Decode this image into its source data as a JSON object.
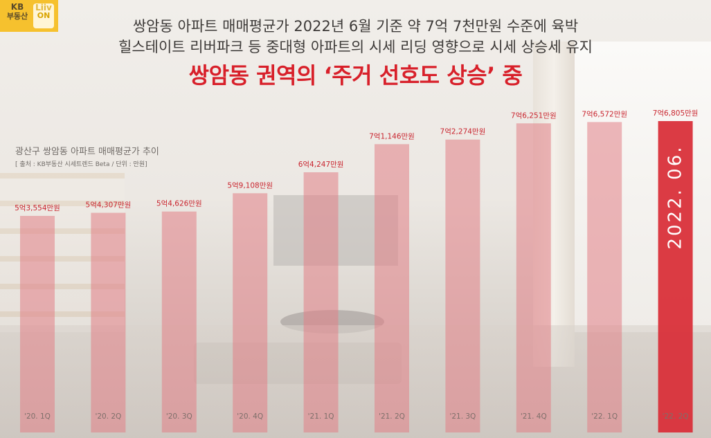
{
  "logo": {
    "line1": "KB",
    "line2": "부동산",
    "badge_icon": "Liiv",
    "badge_text": "ON"
  },
  "headline": {
    "line1": "쌍암동 아파트 매매평균가 2022년 6월 기준 약 7억 7천만원 수준에 육박",
    "line2": "힐스테이트 리버파크 등 중대형 아파트의 시세 리딩 영향으로 시세 상승세 유지",
    "emphasis": "쌍암동 권역의 ‘주거 선호도 상승’ 중"
  },
  "caption": {
    "title": "광산구 쌍암동 아파트 매매평균가 추이",
    "source": "[ 출처 : KB부동산 시세트렌드 Beta / 단위 : 만원]"
  },
  "chart_data": {
    "type": "bar",
    "categories": [
      "'20. 1Q",
      "'20. 2Q",
      "'20. 3Q",
      "'20. 4Q",
      "'21. 1Q",
      "'21. 2Q",
      "'21. 3Q",
      "'21. 4Q",
      "'22. 1Q",
      "'22. 2Q"
    ],
    "values": [
      53554,
      54307,
      54626,
      59108,
      64247,
      71146,
      72274,
      76251,
      76572,
      76805
    ],
    "value_labels": [
      "5억3,554만원",
      "5억4,307만원",
      "5억4,626만원",
      "5억9,108만원",
      "6억4,247만원",
      "7억1,146만원",
      "7억2,274만원",
      "7억6,251만원",
      "7억6,572만원",
      "7억6,805만원"
    ],
    "highlight_index": 9,
    "highlight_text": "2022. 06.",
    "colors": {
      "bar": "#e27f86",
      "highlight": "#d9303a",
      "label": "#c9242e"
    }
  }
}
